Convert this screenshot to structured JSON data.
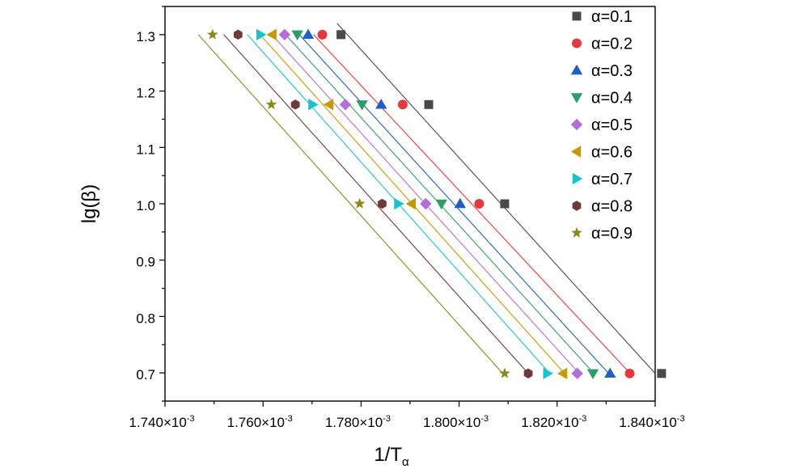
{
  "chart_data": {
    "type": "scatter",
    "xlabel": "1/T",
    "xlabel_sub": "α",
    "ylabel": "lg(β)",
    "xlim": [
      0.00174,
      0.00184
    ],
    "ylim": [
      0.65,
      1.35
    ],
    "x_ticks": [
      0.00174,
      0.00176,
      0.00178,
      0.0018,
      0.00182,
      0.00184
    ],
    "x_tick_labels": [
      "1.740×10",
      "1.760×10",
      "1.780×10",
      "1.800×10",
      "1.820×10",
      "1.840×10"
    ],
    "x_tick_exponent": "-3",
    "y_ticks": [
      0.7,
      0.8,
      0.9,
      1.0,
      1.1,
      1.2,
      1.3
    ],
    "y_tick_labels": [
      "0.7",
      "0.8",
      "0.9",
      "1.0",
      "1.1",
      "1.2",
      "1.3"
    ],
    "y": [
      1.3,
      1.176,
      1.0,
      0.699
    ],
    "grid": false,
    "legend_position": "top-right",
    "fit_lines": true,
    "series": [
      {
        "name": "α=0.1",
        "marker": "square",
        "color": "#4a4a4a",
        "x": [
          0.0017759,
          0.0017938,
          0.0018093,
          0.0018413
        ],
        "fit": [
          [
            0.0017751,
            1.32
          ],
          [
            0.0018399,
            0.7
          ]
        ]
      },
      {
        "name": "α=0.2",
        "marker": "circle",
        "color": "#e8383d",
        "x": [
          0.0017721,
          0.0017885,
          0.0018041,
          0.0018348
        ],
        "fit": [
          [
            0.0017703,
            1.3
          ],
          [
            0.0018348,
            0.7
          ]
        ]
      },
      {
        "name": "α=0.3",
        "marker": "triangle-up",
        "color": "#1f5fc4",
        "x": [
          0.0017692,
          0.0017841,
          0.0018002,
          0.0018308
        ],
        "fit": [
          [
            0.0017674,
            1.3
          ],
          [
            0.0018304,
            0.7
          ]
        ]
      },
      {
        "name": "α=0.4",
        "marker": "triangle-down",
        "color": "#2e9e68",
        "x": [
          0.001767,
          0.0017802,
          0.0017964,
          0.0018273
        ],
        "fit": [
          [
            0.0017646,
            1.3
          ],
          [
            0.0018274,
            0.7
          ]
        ]
      },
      {
        "name": "α=0.5",
        "marker": "diamond",
        "color": "#b36ed8",
        "x": [
          0.0017644,
          0.0017768,
          0.0017932,
          0.0018241
        ],
        "fit": [
          [
            0.0017618,
            1.3
          ],
          [
            0.0018244,
            0.7
          ]
        ]
      },
      {
        "name": "α=0.6",
        "marker": "triangle-left",
        "color": "#c49a00",
        "x": [
          0.0017619,
          0.0017735,
          0.0017903,
          0.0018212
        ],
        "fit": [
          [
            0.0017594,
            1.3
          ],
          [
            0.0018214,
            0.7
          ]
        ]
      },
      {
        "name": "α=0.7",
        "marker": "triangle-right",
        "color": "#19c2cf",
        "x": [
          0.0017595,
          0.0017701,
          0.0017876,
          0.001818
        ],
        "fit": [
          [
            0.0017568,
            1.3
          ],
          [
            0.0018184,
            0.7
          ]
        ]
      },
      {
        "name": "α=0.8",
        "marker": "hexagon",
        "color": "#6e3a3a",
        "x": [
          0.0017549,
          0.0017666,
          0.0017843,
          0.0018141
        ],
        "fit": [
          [
            0.001752,
            1.3
          ],
          [
            0.001814,
            0.7
          ]
        ]
      },
      {
        "name": "α=0.9",
        "marker": "star",
        "color": "#8a8a1a",
        "x": [
          0.0017497,
          0.0017617,
          0.0017797,
          0.0018093
        ],
        "fit": [
          [
            0.0017468,
            1.3
          ],
          [
            0.0018088,
            0.7
          ]
        ]
      }
    ]
  }
}
